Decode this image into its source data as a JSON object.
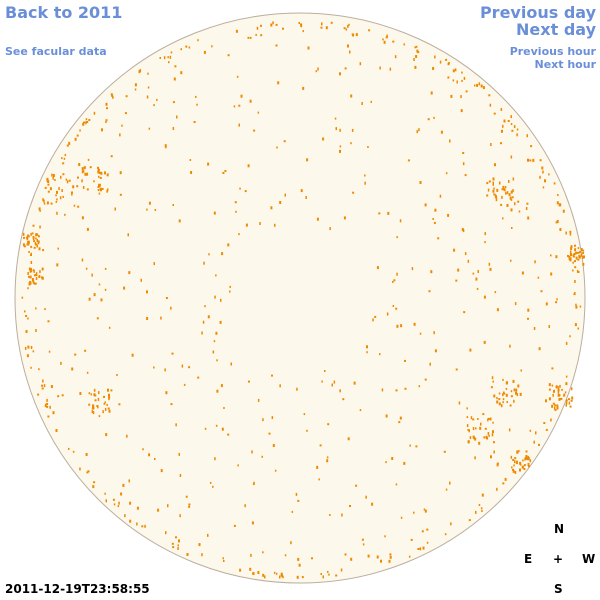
{
  "nav": {
    "back": "Back to 2011",
    "facular": "See facular data",
    "previous_day": "Previous day",
    "next_day": "Next day",
    "previous_hour": "Previous hour",
    "next_hour": "Next hour"
  },
  "compass": {
    "north": "N",
    "east": "E",
    "center": "+",
    "west": "W",
    "south": "S"
  },
  "timestamp": "2011-12-19T23:58:55"
}
